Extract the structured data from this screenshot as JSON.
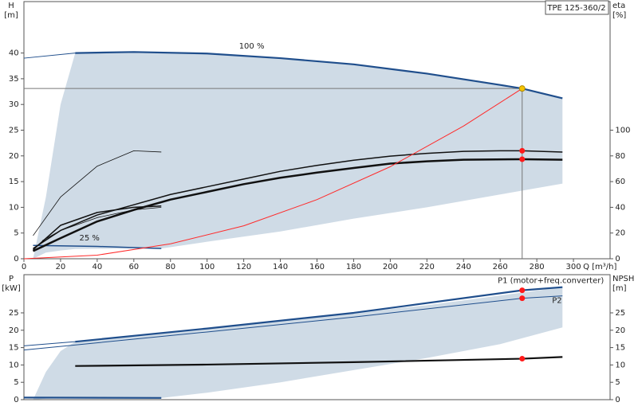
{
  "chart_data": [
    {
      "type": "line",
      "title": "TPE 125-360/2",
      "xlabel": "Q [m³/h]",
      "ylabel": "H",
      "ylabel_unit": "[m]",
      "y2label": "eta",
      "y2label_unit": "[%]",
      "xlim": [
        0,
        320
      ],
      "xticks": [
        0,
        20,
        40,
        60,
        80,
        100,
        120,
        140,
        160,
        180,
        200,
        220,
        240,
        260,
        280,
        300
      ],
      "ylim": [
        0,
        50
      ],
      "yticks": [
        0,
        5,
        10,
        15,
        20,
        25,
        30,
        35,
        40
      ],
      "y2lim": [
        0,
        200
      ],
      "y2ticks": [
        0,
        20,
        40,
        60,
        80,
        100
      ],
      "grid": false,
      "area": {
        "color": "#cfdbe6",
        "x": [
          5,
          12,
          20,
          28,
          60,
          75,
          100,
          140,
          180,
          220,
          260,
          294
        ],
        "upper": [
          0,
          12,
          30,
          40,
          40.2,
          40.2,
          39.9,
          39,
          37.8,
          36,
          33.8,
          31.2
        ],
        "lower": [
          0,
          1.2,
          1.6,
          1.9,
          2,
          2,
          3.3,
          5.3,
          7.8,
          10,
          12.5,
          14.6
        ]
      },
      "series": [
        {
          "color": "#1f4e8c",
          "width": 1,
          "x": [
            0,
            28
          ],
          "values": [
            39,
            40
          ]
        },
        {
          "name": "100 %",
          "color": "#1f4e8c",
          "width": 2.2,
          "x": [
            28,
            60,
            100,
            140,
            180,
            220,
            260,
            272,
            294
          ],
          "values": [
            40,
            40.2,
            39.9,
            39,
            37.8,
            36,
            33.8,
            33.1,
            31.2
          ]
        },
        {
          "name": "25 %",
          "color": "#1f4e8c",
          "width": 1.5,
          "x": [
            5,
            40,
            75
          ],
          "values": [
            2.6,
            2.4,
            2.0
          ]
        },
        {
          "color": "#111111",
          "width": 1.5,
          "axis": "y2",
          "x": [
            5,
            20,
            40,
            60,
            80,
            100,
            120,
            140,
            160,
            180,
            200,
            220,
            240,
            260,
            272,
            294
          ],
          "values": [
            8,
            22,
            34,
            42,
            50,
            56,
            62,
            68,
            72.6,
            76.6,
            79.8,
            82,
            83.5,
            84,
            84,
            83
          ]
        },
        {
          "color": "#111111",
          "width": 2.5,
          "axis": "y2",
          "x": [
            5,
            20,
            40,
            60,
            80,
            100,
            120,
            140,
            160,
            180,
            200,
            220,
            240,
            272,
            294
          ],
          "values": [
            6,
            16,
            29,
            38,
            46,
            52,
            58,
            63,
            67,
            70.6,
            74,
            75.8,
            77,
            77.4,
            77
          ]
        },
        {
          "color": "#111111",
          "width": 0.8,
          "axis": "y2",
          "x": [
            5,
            20,
            40,
            60,
            75
          ],
          "values": [
            18,
            48,
            72,
            84,
            83
          ]
        },
        {
          "color": "#111111",
          "width": 1.5,
          "axis": "y2",
          "x": [
            5,
            20,
            40,
            60,
            75
          ],
          "values": [
            7,
            26,
            36,
            40,
            41
          ]
        },
        {
          "color": "#111111",
          "width": 0.8,
          "axis": "y2",
          "x": [
            10,
            20,
            40,
            60,
            75
          ],
          "values": [
            14,
            22,
            32,
            38,
            40
          ]
        },
        {
          "color": "#ff2a2a",
          "width": 1,
          "x": [
            0,
            40,
            80,
            120,
            160,
            200,
            240,
            272
          ],
          "values": [
            0,
            0.7,
            2.9,
            6.4,
            11.5,
            17.9,
            25.8,
            33.1
          ]
        }
      ],
      "points": [
        {
          "x": 272,
          "value": 33.1,
          "color": "#f5c400",
          "guide": true
        },
        {
          "x": 272,
          "value": 84,
          "axis": "y2",
          "color": "#ff1a1a"
        },
        {
          "x": 272,
          "value": 77.4,
          "axis": "y2",
          "color": "#ff1a1a"
        }
      ]
    },
    {
      "type": "line",
      "ylabel": "P",
      "ylabel_unit": "[kW]",
      "y2label": "NPSH",
      "y2label_unit": "[m]",
      "xlim": [
        0,
        320
      ],
      "ylim": [
        0,
        36
      ],
      "yticks": [
        0,
        5,
        10,
        15,
        20,
        25
      ],
      "y2lim": [
        0,
        36
      ],
      "y2ticks": [
        0,
        5,
        10,
        15,
        20,
        25
      ],
      "grid": false,
      "area": {
        "color": "#cfdbe6",
        "x": [
          5,
          12,
          20,
          28,
          75,
          100,
          140,
          180,
          220,
          260,
          294
        ],
        "upper": [
          0,
          8,
          14,
          16.7,
          19.3,
          20.5,
          22.7,
          25,
          27.2,
          30,
          32.4
        ],
        "lower": [
          0,
          0.3,
          0.4,
          0.5,
          0.5,
          2,
          5,
          8.5,
          12,
          16,
          20.8
        ]
      },
      "series": [
        {
          "color": "#1f4e8c",
          "width": 1,
          "x": [
            0,
            28
          ],
          "values": [
            15.5,
            16.7
          ]
        },
        {
          "name": "P1 (motor+freq.converter)",
          "color": "#1f4e8c",
          "width": 2.2,
          "x": [
            28,
            100,
            180,
            272,
            294
          ],
          "values": [
            16.7,
            20.5,
            25,
            31.5,
            32.4
          ]
        },
        {
          "name": "P2",
          "color": "#1f4e8c",
          "width": 1,
          "x": [
            0,
            100,
            180,
            272,
            294
          ],
          "values": [
            14.3,
            19.5,
            23.8,
            29.2,
            29.9
          ]
        },
        {
          "color": "#111111",
          "width": 2.2,
          "axis": "y2",
          "x": [
            28,
            100,
            180,
            272,
            294
          ],
          "values": [
            9.7,
            10.1,
            10.8,
            11.8,
            12.3
          ]
        },
        {
          "color": "#1f4e8c",
          "width": 2.2,
          "x": [
            0,
            75
          ],
          "values": [
            0.6,
            0.5
          ]
        }
      ],
      "points": [
        {
          "x": 272,
          "value": 31.5,
          "color": "#ff1a1a"
        },
        {
          "x": 272,
          "value": 29.2,
          "color": "#ff1a1a"
        },
        {
          "x": 272,
          "value": 11.8,
          "axis": "y2",
          "color": "#ff1a1a"
        }
      ]
    }
  ]
}
